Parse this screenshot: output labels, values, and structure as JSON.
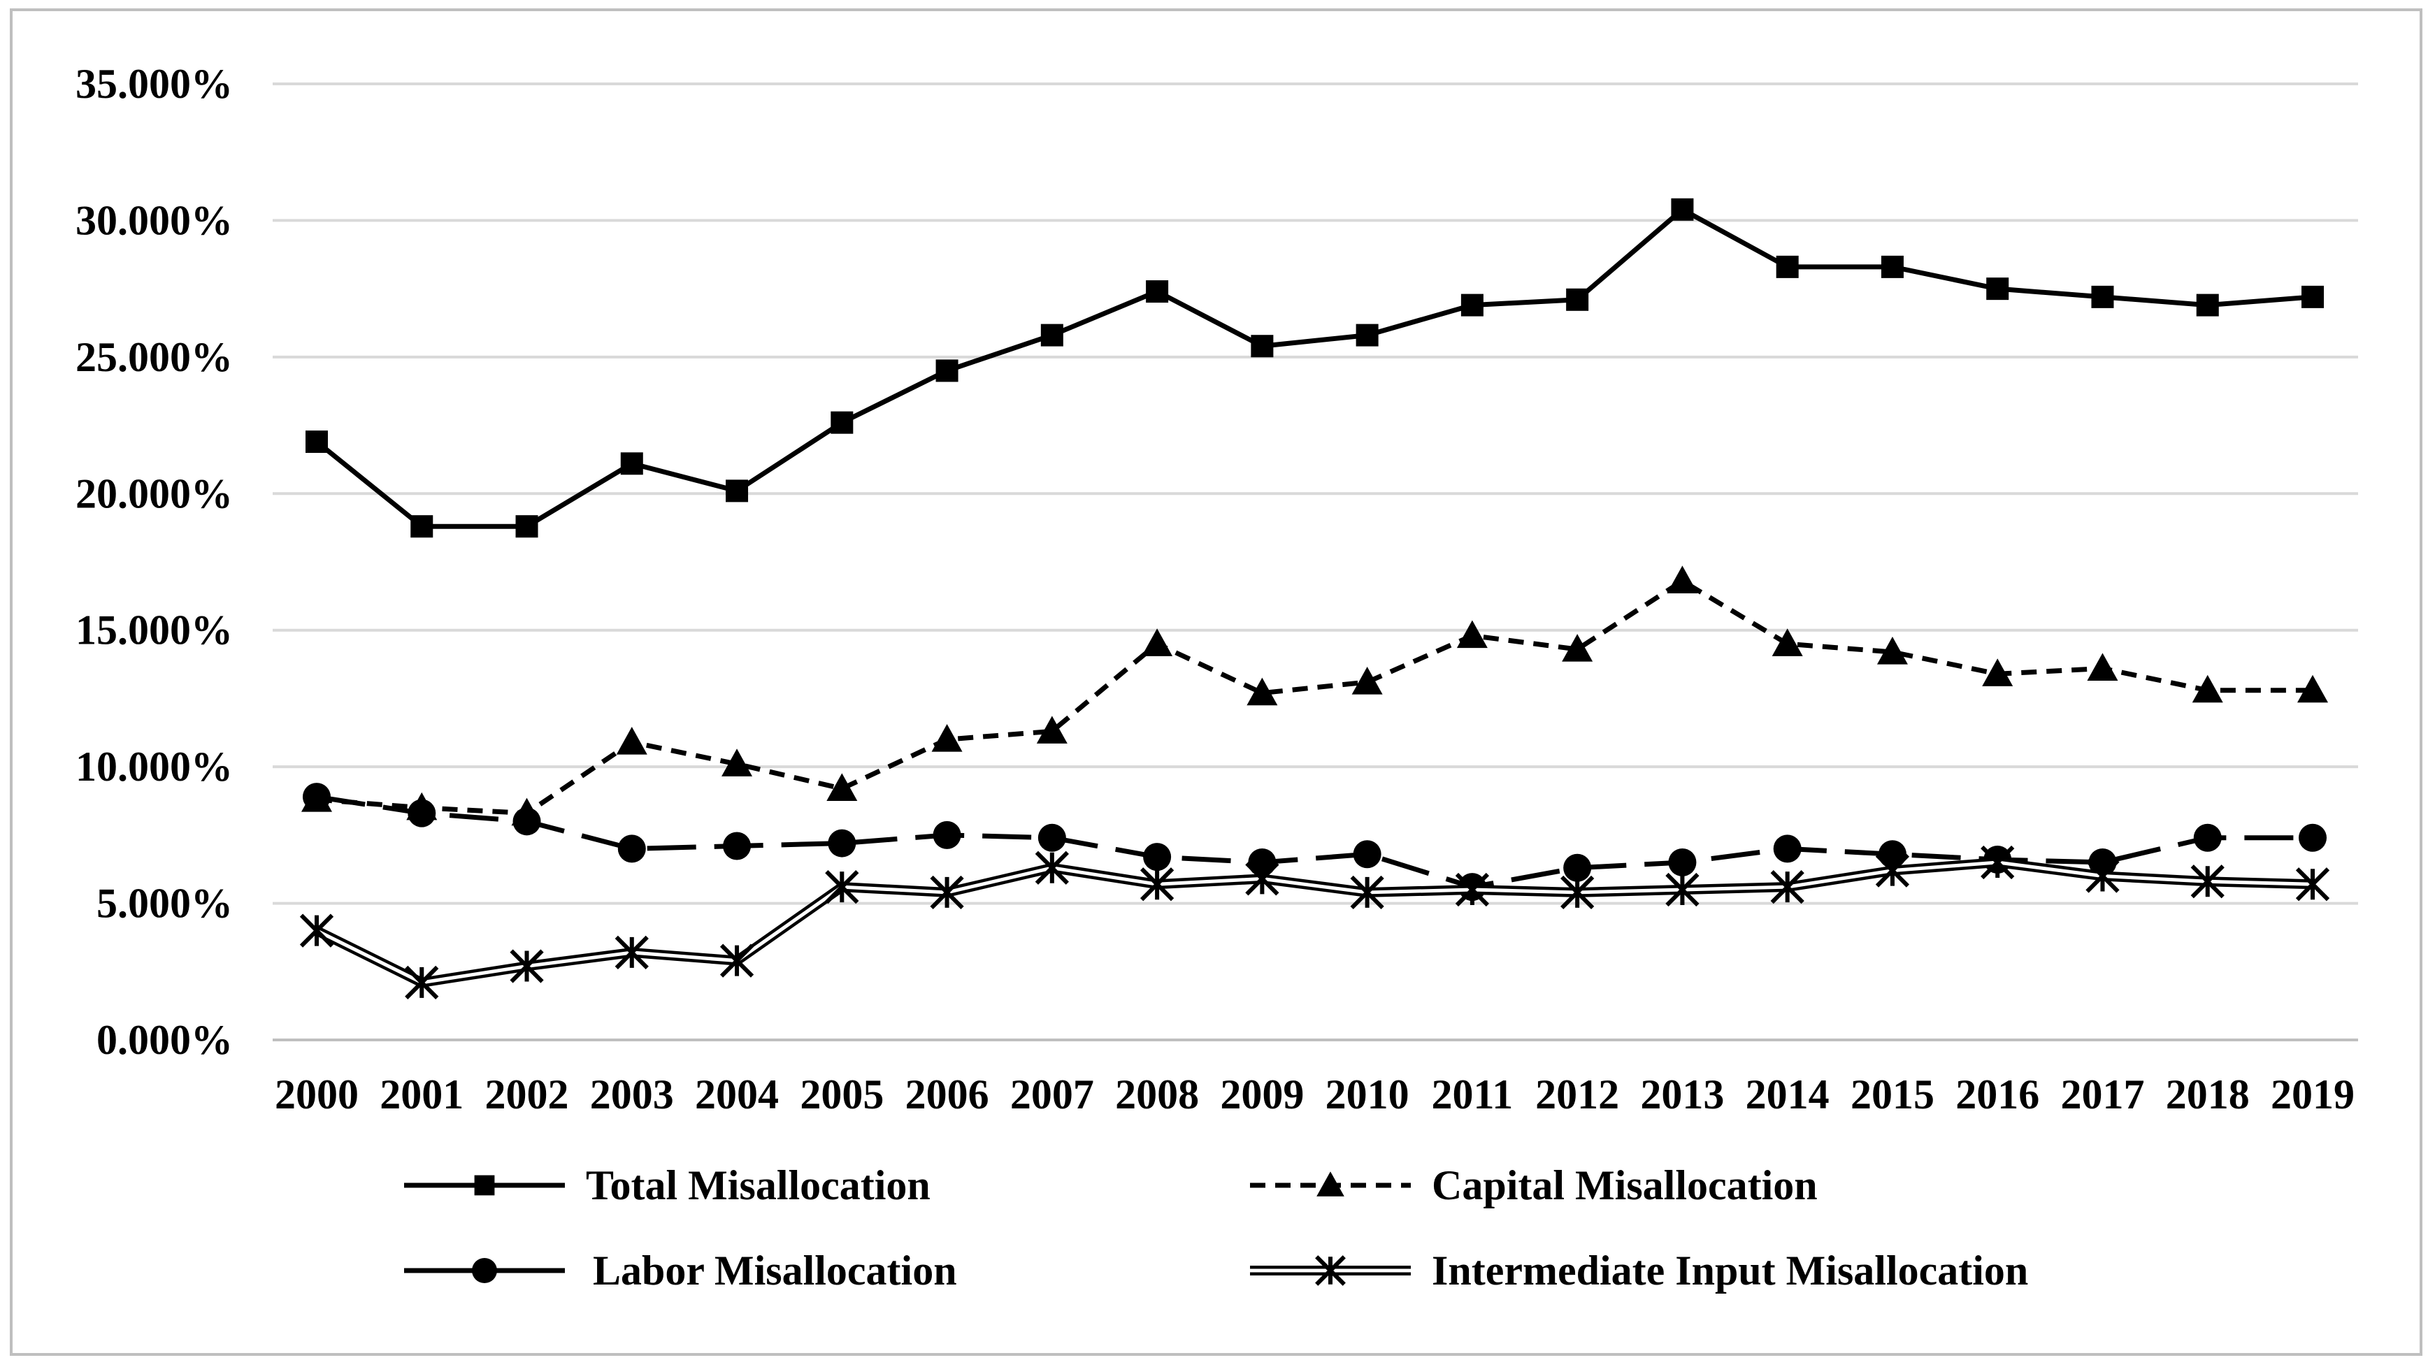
{
  "chart_data": {
    "type": "line",
    "title": "",
    "xlabel": "",
    "ylabel": "",
    "categories": [
      "2000",
      "2001",
      "2002",
      "2003",
      "2004",
      "2005",
      "2006",
      "2007",
      "2008",
      "2009",
      "2010",
      "2011",
      "2012",
      "2013",
      "2014",
      "2015",
      "2016",
      "2017",
      "2018",
      "2019"
    ],
    "y_ticks": [
      "0.000%",
      "5.000%",
      "10.000%",
      "15.000%",
      "20.000%",
      "25.000%",
      "30.000%",
      "35.000%"
    ],
    "ylim": [
      0,
      35
    ],
    "grid": true,
    "legend_position": "bottom",
    "series": [
      {
        "name": "Total Misallocation",
        "style": "solid",
        "marker": "square",
        "color": "#000000",
        "values": [
          21.9,
          18.8,
          18.8,
          21.1,
          20.1,
          22.6,
          24.5,
          25.8,
          27.4,
          25.4,
          25.8,
          26.9,
          27.1,
          30.4,
          28.3,
          28.3,
          27.5,
          27.2,
          26.9,
          27.2
        ]
      },
      {
        "name": "Capital Misallocation",
        "style": "dash",
        "marker": "triangle",
        "color": "#000000",
        "values": [
          8.8,
          8.5,
          8.3,
          10.9,
          10.1,
          9.2,
          11.0,
          11.3,
          14.5,
          12.7,
          13.1,
          14.8,
          14.3,
          16.8,
          14.5,
          14.2,
          13.4,
          13.6,
          12.8,
          12.8
        ]
      },
      {
        "name": "Labor Misallocation",
        "style": "longdash",
        "marker": "circle",
        "color": "#000000",
        "values": [
          8.9,
          8.3,
          8.0,
          7.0,
          7.1,
          7.2,
          7.5,
          7.4,
          6.7,
          6.5,
          6.8,
          5.6,
          6.3,
          6.5,
          7.0,
          6.8,
          6.6,
          6.5,
          7.4,
          7.4
        ]
      },
      {
        "name": "Intermediate Input Misallocation",
        "style": "double",
        "marker": "star",
        "color": "#000000",
        "values": [
          4.0,
          2.1,
          2.7,
          3.2,
          2.9,
          5.6,
          5.4,
          6.3,
          5.7,
          5.9,
          5.4,
          5.5,
          5.4,
          5.5,
          5.6,
          6.2,
          6.5,
          6.0,
          5.8,
          5.7
        ]
      }
    ]
  }
}
